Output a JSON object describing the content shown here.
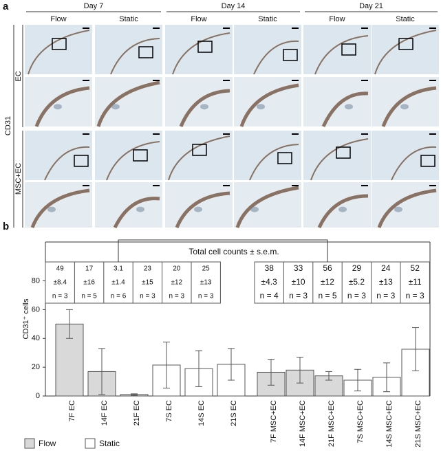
{
  "figure": {
    "panel_label": "a",
    "days": [
      "Day 7",
      "Day 14",
      "Day 21"
    ],
    "conditions": [
      "Flow",
      "Static"
    ],
    "marker": "CD31",
    "rows": [
      "EC",
      "MSC+EC"
    ]
  },
  "chart_data": {
    "type": "bar",
    "panel_label": "b",
    "ylabel": "CD31⁺ cells",
    "categories": [
      "7F EC",
      "14F EC",
      "21F EC",
      "7S EC",
      "14S EC",
      "21S EC",
      "7F MSC+EC",
      "14F MSC+EC",
      "21F MSC+EC",
      "7S MSC+EC",
      "14S MSC+EC",
      "21S MSC+EC"
    ],
    "series": [
      {
        "name": "Flow",
        "color": "#d9d9d9",
        "values": [
          50,
          17,
          1,
          null,
          null,
          null,
          16.5,
          18,
          14,
          null,
          null,
          null
        ],
        "errors": [
          10,
          16,
          0.5,
          null,
          null,
          null,
          9,
          9,
          3,
          null,
          null,
          null
        ]
      },
      {
        "name": "Static",
        "color": "#ffffff",
        "values": [
          null,
          null,
          null,
          21.5,
          19,
          22,
          null,
          null,
          null,
          11,
          13,
          32.5
        ],
        "errors": [
          null,
          null,
          null,
          16,
          12.5,
          11,
          null,
          null,
          null,
          7.5,
          10,
          15
        ]
      }
    ],
    "ylim": [
      0,
      107
    ],
    "yticks": [
      0,
      20,
      40,
      60,
      80
    ],
    "annotation": "Total cell counts ± s.e.m.",
    "tables": [
      [
        [
          "49",
          "17",
          "3.1",
          "23",
          "20",
          "25"
        ],
        [
          "±8.4",
          "±16",
          "±1.4",
          "±15",
          "±12",
          "±13"
        ],
        [
          "n = 3",
          "n = 5",
          "n = 6",
          "n = 3",
          "n = 3",
          "n = 3"
        ]
      ],
      [
        [
          "38",
          "33",
          "56",
          "29",
          "24",
          "52"
        ],
        [
          "±4.3",
          "±10",
          "±12",
          "±5.2",
          "±13",
          "±11"
        ],
        [
          "n = 4",
          "n = 3",
          "n = 5",
          "n = 3",
          "n = 3",
          "n = 3"
        ]
      ]
    ]
  }
}
